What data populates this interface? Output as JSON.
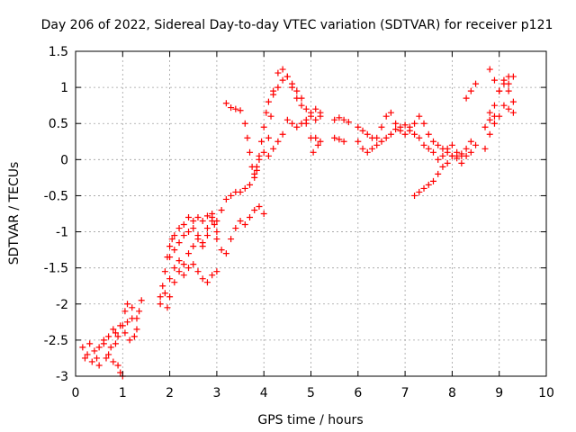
{
  "chart_data": {
    "type": "scatter",
    "title": "Day 206 of 2022, Sidereal Day-to-day VTEC variation (SDTVAR) for receiver p121",
    "xlabel": "GPS time / hours",
    "ylabel": "SDTVAR / TECUs",
    "xlim": [
      0,
      10
    ],
    "ylim": [
      -3,
      1.5
    ],
    "xticks": [
      "0",
      "1",
      "2",
      "3",
      "4",
      "5",
      "6",
      "7",
      "8",
      "9",
      "10"
    ],
    "yticks": [
      "-3",
      "-2.5",
      "-2",
      "-1.5",
      "-1",
      "-0.5",
      "0",
      "0.5",
      "1",
      "1.5"
    ],
    "grid": true,
    "marker": "+",
    "color": "#ff0000",
    "series": [
      {
        "name": "SDTVAR",
        "points": [
          [
            0.15,
            -2.6
          ],
          [
            0.25,
            -2.7
          ],
          [
            0.3,
            -2.55
          ],
          [
            0.4,
            -2.65
          ],
          [
            0.45,
            -2.75
          ],
          [
            0.5,
            -2.6
          ],
          [
            0.6,
            -2.5
          ],
          [
            0.7,
            -2.7
          ],
          [
            0.8,
            -2.8
          ],
          [
            0.85,
            -2.55
          ],
          [
            0.9,
            -2.45
          ],
          [
            1.0,
            -2.3
          ],
          [
            1.05,
            -2.1
          ],
          [
            1.1,
            -2.0
          ],
          [
            1.2,
            -2.2
          ],
          [
            1.3,
            -2.35
          ],
          [
            1.35,
            -2.1
          ],
          [
            1.4,
            -1.95
          ],
          [
            0.2,
            -2.75
          ],
          [
            0.35,
            -2.8
          ],
          [
            0.5,
            -2.85
          ],
          [
            0.65,
            -2.75
          ],
          [
            0.75,
            -2.6
          ],
          [
            0.85,
            -2.4
          ],
          [
            0.95,
            -2.3
          ],
          [
            1.05,
            -2.4
          ],
          [
            1.15,
            -2.5
          ],
          [
            1.25,
            -2.45
          ],
          [
            1.3,
            -2.2
          ],
          [
            0.9,
            -2.85
          ],
          [
            0.95,
            -2.95
          ],
          [
            1.0,
            -3.0
          ],
          [
            0.6,
            -2.55
          ],
          [
            0.7,
            -2.45
          ],
          [
            0.8,
            -2.35
          ],
          [
            1.1,
            -2.25
          ],
          [
            1.2,
            -2.05
          ],
          [
            1.8,
            -1.9
          ],
          [
            1.85,
            -1.75
          ],
          [
            1.9,
            -1.55
          ],
          [
            1.95,
            -1.35
          ],
          [
            2.0,
            -1.2
          ],
          [
            2.05,
            -1.1
          ],
          [
            2.1,
            -1.05
          ],
          [
            2.2,
            -0.95
          ],
          [
            2.3,
            -0.9
          ],
          [
            2.4,
            -0.8
          ],
          [
            2.5,
            -0.85
          ],
          [
            2.6,
            -0.8
          ],
          [
            2.7,
            -0.85
          ],
          [
            2.8,
            -0.78
          ],
          [
            2.9,
            -0.75
          ],
          [
            2.95,
            -0.9
          ],
          [
            3.0,
            -1.0
          ],
          [
            1.8,
            -2.0
          ],
          [
            1.9,
            -1.85
          ],
          [
            2.0,
            -1.65
          ],
          [
            2.1,
            -1.5
          ],
          [
            2.2,
            -1.4
          ],
          [
            2.3,
            -1.45
          ],
          [
            2.4,
            -1.3
          ],
          [
            2.5,
            -1.2
          ],
          [
            2.6,
            -1.1
          ],
          [
            2.7,
            -1.15
          ],
          [
            2.8,
            -1.05
          ],
          [
            2.9,
            -0.85
          ],
          [
            1.95,
            -2.05
          ],
          [
            2.0,
            -1.9
          ],
          [
            2.1,
            -1.7
          ],
          [
            2.2,
            -1.55
          ],
          [
            2.3,
            -1.6
          ],
          [
            2.4,
            -1.5
          ],
          [
            2.5,
            -1.45
          ],
          [
            2.6,
            -1.55
          ],
          [
            2.7,
            -1.65
          ],
          [
            2.8,
            -1.7
          ],
          [
            2.9,
            -1.6
          ],
          [
            3.0,
            -1.55
          ],
          [
            2.0,
            -1.35
          ],
          [
            2.1,
            -1.25
          ],
          [
            2.2,
            -1.15
          ],
          [
            2.3,
            -1.05
          ],
          [
            2.4,
            -1.0
          ],
          [
            2.5,
            -0.95
          ],
          [
            2.6,
            -1.05
          ],
          [
            2.7,
            -1.2
          ],
          [
            2.8,
            -0.95
          ],
          [
            2.9,
            -0.8
          ],
          [
            3.0,
            -1.1
          ],
          [
            3.1,
            -1.25
          ],
          [
            3.2,
            -1.3
          ],
          [
            3.3,
            -1.1
          ],
          [
            3.4,
            -0.95
          ],
          [
            3.5,
            -0.85
          ],
          [
            3.6,
            -0.9
          ],
          [
            3.7,
            -0.8
          ],
          [
            3.8,
            -0.7
          ],
          [
            3.9,
            -0.65
          ],
          [
            4.0,
            -0.75
          ],
          [
            3.0,
            -0.85
          ],
          [
            3.1,
            -0.7
          ],
          [
            3.2,
            -0.55
          ],
          [
            3.3,
            -0.5
          ],
          [
            3.4,
            -0.45
          ],
          [
            3.5,
            -0.45
          ],
          [
            3.6,
            -0.4
          ],
          [
            3.7,
            -0.35
          ],
          [
            3.8,
            -0.25
          ],
          [
            3.85,
            -0.1
          ],
          [
            3.9,
            0.05
          ],
          [
            3.95,
            0.25
          ],
          [
            4.0,
            0.45
          ],
          [
            4.05,
            0.65
          ],
          [
            4.1,
            0.8
          ],
          [
            4.2,
            0.9
          ],
          [
            4.3,
            1.0
          ],
          [
            4.4,
            1.1
          ],
          [
            4.5,
            1.15
          ],
          [
            4.6,
            1.05
          ],
          [
            4.7,
            0.95
          ],
          [
            4.8,
            0.85
          ],
          [
            4.9,
            0.7
          ],
          [
            5.0,
            0.6
          ],
          [
            5.1,
            0.55
          ],
          [
            5.2,
            0.6
          ],
          [
            3.2,
            0.78
          ],
          [
            3.3,
            0.72
          ],
          [
            3.4,
            0.7
          ],
          [
            3.5,
            0.68
          ],
          [
            3.6,
            0.5
          ],
          [
            3.65,
            0.3
          ],
          [
            3.7,
            0.1
          ],
          [
            3.75,
            -0.1
          ],
          [
            3.8,
            -0.2
          ],
          [
            3.85,
            -0.15
          ],
          [
            3.9,
            0.0
          ],
          [
            4.0,
            0.1
          ],
          [
            4.1,
            0.3
          ],
          [
            4.15,
            0.6
          ],
          [
            4.2,
            0.95
          ],
          [
            4.3,
            1.2
          ],
          [
            4.4,
            1.25
          ],
          [
            4.5,
            1.15
          ],
          [
            4.6,
            1.0
          ],
          [
            4.7,
            0.85
          ],
          [
            4.8,
            0.75
          ],
          [
            4.9,
            0.5
          ],
          [
            5.0,
            0.3
          ],
          [
            5.05,
            0.1
          ],
          [
            4.1,
            0.05
          ],
          [
            4.2,
            0.15
          ],
          [
            4.3,
            0.25
          ],
          [
            4.4,
            0.35
          ],
          [
            4.5,
            0.55
          ],
          [
            4.6,
            0.5
          ],
          [
            4.7,
            0.45
          ],
          [
            4.8,
            0.5
          ],
          [
            4.9,
            0.55
          ],
          [
            5.0,
            0.65
          ],
          [
            5.1,
            0.7
          ],
          [
            5.2,
            0.65
          ],
          [
            5.1,
            0.3
          ],
          [
            5.15,
            0.2
          ],
          [
            5.2,
            0.25
          ],
          [
            5.5,
            0.55
          ],
          [
            5.6,
            0.58
          ],
          [
            5.7,
            0.55
          ],
          [
            5.8,
            0.52
          ],
          [
            5.5,
            0.3
          ],
          [
            5.6,
            0.28
          ],
          [
            5.7,
            0.25
          ],
          [
            6.0,
            0.45
          ],
          [
            6.1,
            0.4
          ],
          [
            6.2,
            0.35
          ],
          [
            6.3,
            0.3
          ],
          [
            6.4,
            0.3
          ],
          [
            6.5,
            0.45
          ],
          [
            6.6,
            0.6
          ],
          [
            6.7,
            0.65
          ],
          [
            6.8,
            0.5
          ],
          [
            6.9,
            0.4
          ],
          [
            7.0,
            0.35
          ],
          [
            7.1,
            0.4
          ],
          [
            7.2,
            0.5
          ],
          [
            7.3,
            0.6
          ],
          [
            7.4,
            0.5
          ],
          [
            7.5,
            0.35
          ],
          [
            7.6,
            0.25
          ],
          [
            7.7,
            0.2
          ],
          [
            7.8,
            0.15
          ],
          [
            7.9,
            0.1
          ],
          [
            8.0,
            0.05
          ],
          [
            8.1,
            0.02
          ],
          [
            8.2,
            0.05
          ],
          [
            8.3,
            0.15
          ],
          [
            8.4,
            0.25
          ],
          [
            6.0,
            0.25
          ],
          [
            6.1,
            0.15
          ],
          [
            6.2,
            0.1
          ],
          [
            6.3,
            0.15
          ],
          [
            6.4,
            0.2
          ],
          [
            6.5,
            0.25
          ],
          [
            6.6,
            0.3
          ],
          [
            6.7,
            0.35
          ],
          [
            6.8,
            0.42
          ],
          [
            6.9,
            0.45
          ],
          [
            7.0,
            0.48
          ],
          [
            7.1,
            0.45
          ],
          [
            7.2,
            0.35
          ],
          [
            7.3,
            0.3
          ],
          [
            7.4,
            0.2
          ],
          [
            7.5,
            0.15
          ],
          [
            7.6,
            0.1
          ],
          [
            7.7,
            0.0
          ],
          [
            7.8,
            0.05
          ],
          [
            7.9,
            0.15
          ],
          [
            8.0,
            0.2
          ],
          [
            8.1,
            0.05
          ],
          [
            8.2,
            -0.05
          ],
          [
            7.2,
            -0.5
          ],
          [
            7.3,
            -0.45
          ],
          [
            7.4,
            -0.4
          ],
          [
            7.5,
            -0.35
          ],
          [
            7.6,
            -0.3
          ],
          [
            7.7,
            -0.2
          ],
          [
            7.8,
            -0.1
          ],
          [
            7.9,
            -0.05
          ],
          [
            8.0,
            0.05
          ],
          [
            8.1,
            0.1
          ],
          [
            8.2,
            0.08
          ],
          [
            8.3,
            0.05
          ],
          [
            8.4,
            0.1
          ],
          [
            8.5,
            0.2
          ],
          [
            8.3,
            0.85
          ],
          [
            8.4,
            0.95
          ],
          [
            8.5,
            1.05
          ],
          [
            8.7,
            0.15
          ],
          [
            8.8,
            0.35
          ],
          [
            8.9,
            0.5
          ],
          [
            9.0,
            0.6
          ],
          [
            9.1,
            0.75
          ],
          [
            9.2,
            0.7
          ],
          [
            9.3,
            0.65
          ],
          [
            9.2,
            1.05
          ],
          [
            9.3,
            1.15
          ],
          [
            9.2,
            1.15
          ],
          [
            9.1,
            1.05
          ],
          [
            9.0,
            0.95
          ],
          [
            8.9,
            1.1
          ],
          [
            8.8,
            1.25
          ],
          [
            8.7,
            0.45
          ],
          [
            8.8,
            0.55
          ],
          [
            8.9,
            0.75
          ],
          [
            9.0,
            0.95
          ],
          [
            9.1,
            1.1
          ],
          [
            9.2,
            0.95
          ],
          [
            9.3,
            0.8
          ],
          [
            8.8,
            0.65
          ],
          [
            8.9,
            0.6
          ]
        ]
      }
    ]
  }
}
